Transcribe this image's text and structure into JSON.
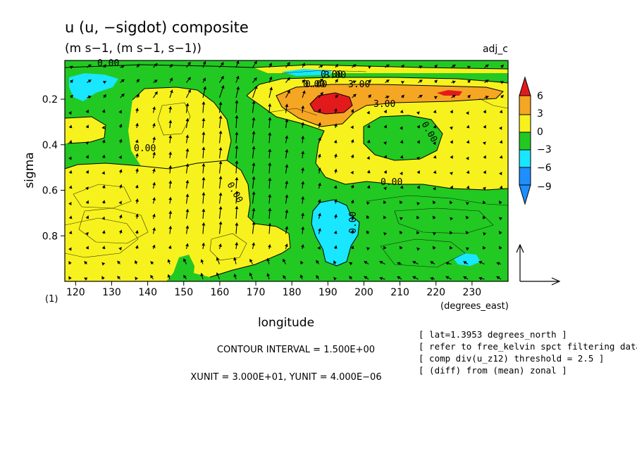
{
  "chart_data": {
    "type": "heatmap",
    "title": "u (u, −sigdot) composite",
    "subtitle": "(m s−1, (m s−1, s−1))",
    "tag": "adj_c",
    "xlabel": "longitude",
    "ylabel": "sigma",
    "x_unit_label": "(degrees_east)",
    "corner_label": "(1)",
    "xlim": [
      117,
      240
    ],
    "ylim": [
      1.0,
      0.03
    ],
    "x_ticks": [
      "120",
      "130",
      "140",
      "150",
      "160",
      "170",
      "180",
      "190",
      "200",
      "210",
      "220",
      "230"
    ],
    "y_ticks": [
      "0.2",
      "0.4",
      "0.6",
      "0.8"
    ],
    "colorbar": {
      "labels": [
        "6",
        "3",
        "0",
        "−3",
        "−6",
        "−9"
      ],
      "levels": [
        {
          "range": "> 6",
          "color": "#e31a1c"
        },
        {
          "range": "3 to 6",
          "color": "#f5a623"
        },
        {
          "range": "0 to 3",
          "color": "#f7f21d"
        },
        {
          "range": "-3 to 0",
          "color": "#22c922"
        },
        {
          "range": "-6 to -3",
          "color": "#19e6ff"
        },
        {
          "range": "< -9",
          "color": "#1f8fff"
        }
      ]
    },
    "contour_labels": [
      "0.00",
      "0.00",
      "3.00",
      "3.00",
      "3.00",
      "0.00",
      "0.00",
      "0.00",
      "0.00",
      "0.00",
      "0.00",
      "0.00"
    ],
    "contour_interval": "CONTOUR INTERVAL = 1.500E+00",
    "vector_units": "XUNIT = 3.000E+01, YUNIT = 4.000E−06",
    "notes": [
      "[ lat=1.3953 degrees_north ]",
      "[ refer to free_kelvin spct filtering data ]",
      "[ comp div(u_z12) threshold = 2.5 ]",
      "[ (diff) from (mean) zonal ]"
    ]
  }
}
